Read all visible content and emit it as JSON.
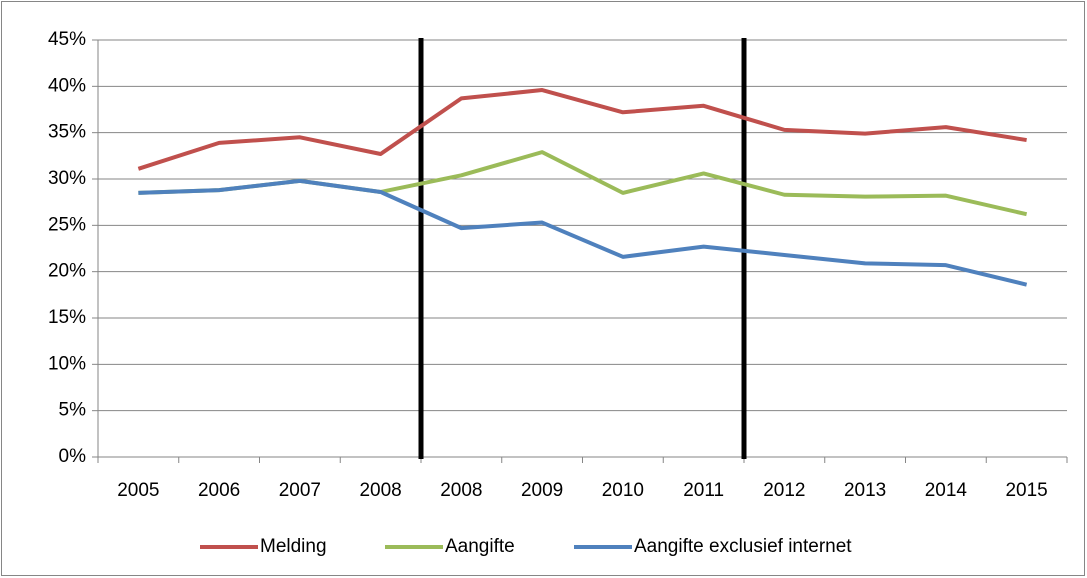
{
  "chart_data": {
    "type": "line",
    "categories": [
      "2005",
      "2006",
      "2007",
      "2008",
      "2008",
      "2009",
      "2010",
      "2011",
      "2012",
      "2013",
      "2014",
      "2015"
    ],
    "series": [
      {
        "name": "Melding",
        "color": "#c0504d",
        "values": [
          31.1,
          33.9,
          34.5,
          32.7,
          38.7,
          39.6,
          37.2,
          37.9,
          35.3,
          34.9,
          35.6,
          34.2
        ]
      },
      {
        "name": "Aangifte",
        "color": "#9bbb59",
        "values": [
          28.5,
          28.8,
          29.8,
          28.6,
          30.4,
          32.9,
          28.5,
          30.6,
          28.3,
          28.1,
          28.2,
          26.2
        ]
      },
      {
        "name": "Aangifte exclusief internet",
        "color": "#4f81bd",
        "values": [
          28.5,
          28.8,
          29.8,
          28.6,
          24.7,
          25.3,
          21.6,
          22.7,
          21.8,
          20.9,
          20.7,
          18.6
        ]
      }
    ],
    "ylim": [
      0,
      45
    ],
    "yticks": [
      {
        "value": 0,
        "label": "0%"
      },
      {
        "value": 5,
        "label": "5%"
      },
      {
        "value": 10,
        "label": "10%"
      },
      {
        "value": 15,
        "label": "15%"
      },
      {
        "value": 20,
        "label": "20%"
      },
      {
        "value": 25,
        "label": "25%"
      },
      {
        "value": 30,
        "label": "30%"
      },
      {
        "value": 35,
        "label": "35%"
      },
      {
        "value": 40,
        "label": "40%"
      },
      {
        "value": 45,
        "label": "45%"
      }
    ],
    "grid": true,
    "legend": "bottom"
  }
}
